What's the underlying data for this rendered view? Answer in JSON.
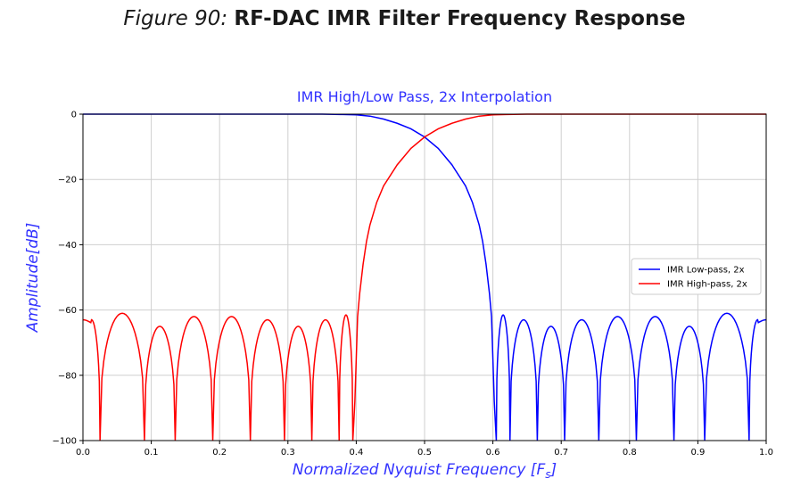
{
  "figure": {
    "label": "Figure 90:",
    "title": "RF-DAC IMR Filter Frequency Response"
  },
  "chart_data": {
    "type": "line",
    "title": "IMR High/Low Pass, 2x Interpolation",
    "xlabel": "Normalized Nyquist Frequency [Fs]",
    "ylabel": "Amplitude[dB]",
    "xlim": [
      0.0,
      1.0
    ],
    "ylim": [
      -100,
      0
    ],
    "xticks": [
      "0.0",
      "0.1",
      "0.2",
      "0.3",
      "0.4",
      "0.5",
      "0.6",
      "0.7",
      "0.8",
      "0.9",
      "1.0"
    ],
    "yticks": [
      "0",
      "−20",
      "−40",
      "−60",
      "−80",
      "−100"
    ],
    "grid": true,
    "legend_position": "center-right",
    "series": [
      {
        "name": "IMR Low-pass, 2x",
        "color": "#0000ff",
        "points": [
          [
            0.0,
            0
          ],
          [
            0.35,
            0
          ],
          [
            0.38,
            -0.1
          ],
          [
            0.4,
            -0.2
          ],
          [
            0.42,
            -0.6
          ],
          [
            0.44,
            -1.5
          ],
          [
            0.46,
            -2.8
          ],
          [
            0.48,
            -4.5
          ],
          [
            0.5,
            -7
          ],
          [
            0.52,
            -10.5
          ],
          [
            0.54,
            -15.5
          ],
          [
            0.56,
            -22
          ],
          [
            0.57,
            -27
          ],
          [
            0.58,
            -34
          ],
          [
            0.585,
            -39
          ],
          [
            0.59,
            -46
          ],
          [
            0.595,
            -55
          ],
          [
            0.598,
            -62
          ],
          [
            0.6,
            -75
          ],
          [
            0.602,
            -88
          ]
        ],
        "stopband_nulls": [
          0.625,
          0.665,
          0.705,
          0.755,
          0.81,
          0.865,
          0.91,
          0.975
        ],
        "stopband_peaks": [
          -61.5,
          -63,
          -65,
          -63,
          -62,
          -62,
          -65,
          -61,
          -63
        ]
      },
      {
        "name": "IMR High-pass, 2x",
        "color": "#ff0000",
        "points": [
          [
            0.398,
            -88
          ],
          [
            0.4,
            -75
          ],
          [
            0.402,
            -62
          ],
          [
            0.405,
            -55
          ],
          [
            0.41,
            -46
          ],
          [
            0.415,
            -39
          ],
          [
            0.42,
            -34
          ],
          [
            0.43,
            -27
          ],
          [
            0.44,
            -22
          ],
          [
            0.46,
            -15.5
          ],
          [
            0.48,
            -10.5
          ],
          [
            0.5,
            -7
          ],
          [
            0.52,
            -4.5
          ],
          [
            0.54,
            -2.8
          ],
          [
            0.56,
            -1.5
          ],
          [
            0.58,
            -0.6
          ],
          [
            0.6,
            -0.2
          ],
          [
            0.62,
            -0.1
          ],
          [
            0.65,
            0
          ],
          [
            1.0,
            0
          ]
        ],
        "stopband_nulls": [
          0.025,
          0.09,
          0.135,
          0.19,
          0.245,
          0.295,
          0.335,
          0.375
        ],
        "stopband_peaks": [
          -63,
          -61,
          -65,
          -62,
          -62,
          -63,
          -65,
          -63,
          -61.5
        ]
      }
    ]
  }
}
